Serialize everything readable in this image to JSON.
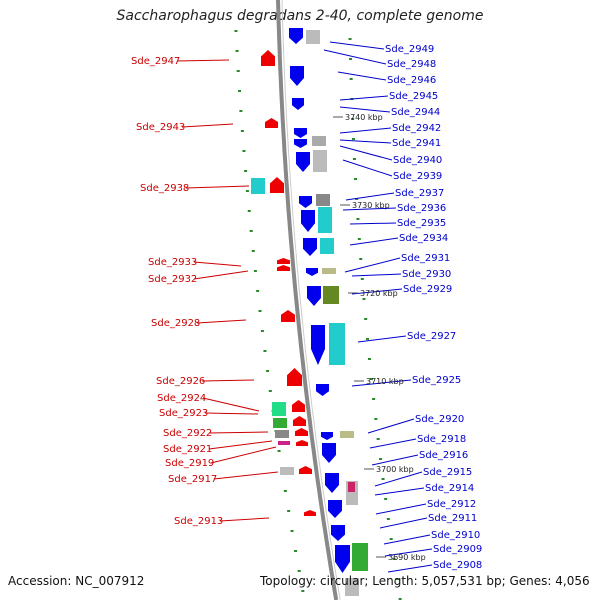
{
  "title": "Saccharophagus degradans 2-40, complete genome",
  "footer": {
    "accession": "Accession: NC_007912",
    "summary": "Topology: circular; Length: 5,057,531 bp; Genes: 4,056"
  },
  "colors": {
    "left_label": "#cc0000",
    "right_label": "#0000cc",
    "forward_gene": "#0000ee",
    "reverse_gene": "#ee0000",
    "backbone": "#888888"
  },
  "ticks": [
    {
      "label": "3740 kbp"
    },
    {
      "label": "3730 kbp"
    },
    {
      "label": "3720 kbp"
    },
    {
      "label": "3710 kbp"
    },
    {
      "label": "3700 kbp"
    },
    {
      "label": "3690 kbp"
    }
  ],
  "left_labels": [
    {
      "text": "Sde_2947"
    },
    {
      "text": "Sde_2943"
    },
    {
      "text": "Sde_2938"
    },
    {
      "text": "Sde_2933"
    },
    {
      "text": "Sde_2932"
    },
    {
      "text": "Sde_2928"
    },
    {
      "text": "Sde_2926"
    },
    {
      "text": "Sde_2924"
    },
    {
      "text": "Sde_2923"
    },
    {
      "text": "Sde_2922"
    },
    {
      "text": "Sde_2921"
    },
    {
      "text": "Sde_2919"
    },
    {
      "text": "Sde_2917"
    },
    {
      "text": "Sde_2913"
    }
  ],
  "right_labels": [
    {
      "text": "Sde_2949"
    },
    {
      "text": "Sde_2948"
    },
    {
      "text": "Sde_2946"
    },
    {
      "text": "Sde_2945"
    },
    {
      "text": "Sde_2944"
    },
    {
      "text": "Sde_2942"
    },
    {
      "text": "Sde_2941"
    },
    {
      "text": "Sde_2940"
    },
    {
      "text": "Sde_2939"
    },
    {
      "text": "Sde_2937"
    },
    {
      "text": "Sde_2936"
    },
    {
      "text": "Sde_2935"
    },
    {
      "text": "Sde_2934"
    },
    {
      "text": "Sde_2931"
    },
    {
      "text": "Sde_2930"
    },
    {
      "text": "Sde_2929"
    },
    {
      "text": "Sde_2927"
    },
    {
      "text": "Sde_2925"
    },
    {
      "text": "Sde_2920"
    },
    {
      "text": "Sde_2918"
    },
    {
      "text": "Sde_2916"
    },
    {
      "text": "Sde_2915"
    },
    {
      "text": "Sde_2914"
    },
    {
      "text": "Sde_2912"
    },
    {
      "text": "Sde_2911"
    },
    {
      "text": "Sde_2910"
    },
    {
      "text": "Sde_2909"
    },
    {
      "text": "Sde_2908"
    }
  ]
}
